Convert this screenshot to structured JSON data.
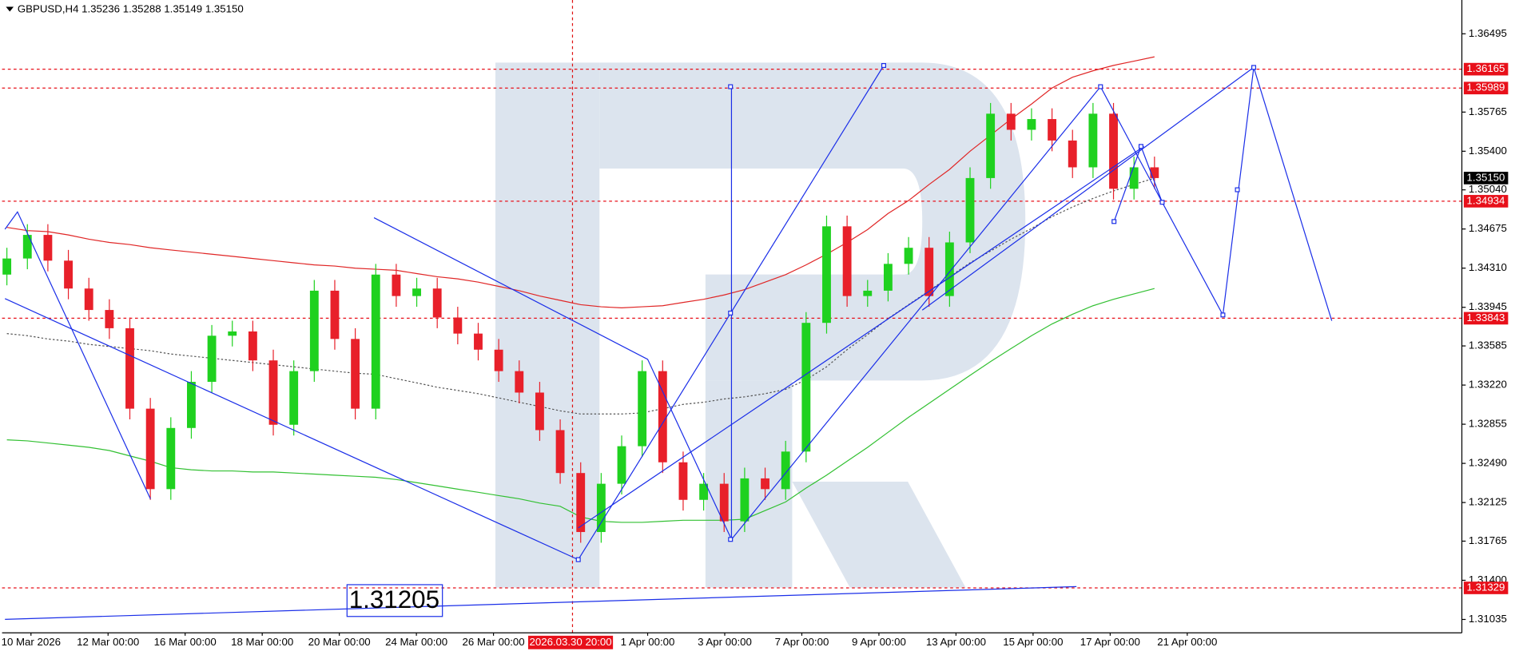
{
  "chart_data": {
    "type": "candlestick",
    "title": "GBPUSD,H4  1.35236 1.35288 1.35149 1.35150",
    "open": [
      1.3425,
      1.344,
      1.3462,
      1.3438,
      1.3412,
      1.3392,
      1.3375,
      1.33,
      1.3225,
      1.3282,
      1.3325,
      1.3368,
      1.3372,
      1.3345,
      1.3285,
      1.3335,
      1.341,
      1.3365,
      1.33,
      1.3425,
      1.3405,
      1.3412,
      1.3385,
      1.337,
      1.3355,
      1.3335,
      1.3315,
      1.328,
      1.324,
      1.3185,
      1.323,
      1.3265,
      1.3335,
      1.325,
      1.3215,
      1.323,
      1.3195,
      1.3235,
      1.3225,
      1.326,
      1.338,
      1.347,
      1.3405,
      1.341,
      1.3435,
      1.345,
      1.3405,
      1.3455,
      1.3515,
      1.3575,
      1.356,
      1.357,
      1.355,
      1.3525,
      1.3575,
      1.3505,
      1.3525
    ],
    "high": [
      1.345,
      1.3472,
      1.3472,
      1.3448,
      1.3422,
      1.3402,
      1.3385,
      1.331,
      1.3292,
      1.3335,
      1.3378,
      1.3382,
      1.3382,
      1.3355,
      1.3345,
      1.342,
      1.342,
      1.3375,
      1.3435,
      1.3435,
      1.3422,
      1.3422,
      1.3395,
      1.338,
      1.3365,
      1.3345,
      1.3325,
      1.329,
      1.325,
      1.324,
      1.3275,
      1.3345,
      1.3345,
      1.326,
      1.324,
      1.324,
      1.3245,
      1.3245,
      1.327,
      1.339,
      1.348,
      1.348,
      1.342,
      1.3445,
      1.346,
      1.346,
      1.3465,
      1.3525,
      1.3585,
      1.3585,
      1.358,
      1.358,
      1.356,
      1.3585,
      1.3585,
      1.3535,
      1.3535
    ],
    "low": [
      1.3415,
      1.343,
      1.3428,
      1.3402,
      1.3382,
      1.3365,
      1.329,
      1.3215,
      1.3215,
      1.3272,
      1.3315,
      1.3358,
      1.3335,
      1.3275,
      1.3275,
      1.3325,
      1.3355,
      1.329,
      1.329,
      1.3395,
      1.3395,
      1.3375,
      1.336,
      1.3345,
      1.3325,
      1.3305,
      1.327,
      1.323,
      1.3175,
      1.3175,
      1.322,
      1.3255,
      1.324,
      1.3205,
      1.3205,
      1.3185,
      1.3185,
      1.3215,
      1.3215,
      1.325,
      1.337,
      1.3395,
      1.3395,
      1.34,
      1.3425,
      1.3395,
      1.3395,
      1.3445,
      1.3505,
      1.355,
      1.355,
      1.354,
      1.3515,
      1.3515,
      1.3495,
      1.3495,
      1.3505
    ],
    "close": [
      1.344,
      1.3462,
      1.3438,
      1.3412,
      1.3392,
      1.3375,
      1.33,
      1.3225,
      1.3282,
      1.3325,
      1.3368,
      1.3372,
      1.3345,
      1.3285,
      1.3335,
      1.341,
      1.3365,
      1.33,
      1.3425,
      1.3405,
      1.3412,
      1.3385,
      1.337,
      1.3355,
      1.3335,
      1.3315,
      1.328,
      1.324,
      1.3185,
      1.323,
      1.3265,
      1.3335,
      1.325,
      1.3215,
      1.323,
      1.3195,
      1.3235,
      1.3225,
      1.326,
      1.338,
      1.347,
      1.3405,
      1.341,
      1.3435,
      1.345,
      1.3405,
      1.3455,
      1.3515,
      1.3575,
      1.356,
      1.357,
      1.355,
      1.3525,
      1.3575,
      1.3505,
      1.3525,
      1.3515
    ],
    "up_color": "#1fd11f",
    "down_color": "#e8202a",
    "lines": [
      {
        "color": "#e02626",
        "values": [
          1.3469,
          1.3466,
          1.3465,
          1.3462,
          1.3458,
          1.3455,
          1.3453,
          1.345,
          1.3448,
          1.3446,
          1.3444,
          1.3442,
          1.344,
          1.3438,
          1.3436,
          1.3434,
          1.3433,
          1.3431,
          1.343,
          1.3429,
          1.3426,
          1.3423,
          1.3421,
          1.3418,
          1.3414,
          1.341,
          1.3405,
          1.3401,
          1.3397,
          1.3395,
          1.3394,
          1.3395,
          1.3396,
          1.3399,
          1.3402,
          1.3406,
          1.3411,
          1.3418,
          1.3425,
          1.3434,
          1.3444,
          1.3455,
          1.3467,
          1.3482,
          1.3494,
          1.3509,
          1.3523,
          1.354,
          1.3555,
          1.357,
          1.3584,
          1.3599,
          1.3609,
          1.3615,
          1.362,
          1.3624,
          1.3628
        ]
      },
      {
        "color": "#32c032",
        "values": [
          1.3271,
          1.327,
          1.3268,
          1.3266,
          1.3264,
          1.3261,
          1.3256,
          1.3251,
          1.3245,
          1.3243,
          1.3242,
          1.3242,
          1.3241,
          1.3241,
          1.324,
          1.3239,
          1.3238,
          1.3237,
          1.3236,
          1.3234,
          1.3231,
          1.3228,
          1.3225,
          1.3222,
          1.3219,
          1.3216,
          1.3212,
          1.3209,
          1.3199,
          1.3195,
          1.3194,
          1.3194,
          1.3195,
          1.3196,
          1.3196,
          1.3196,
          1.3197,
          1.3205,
          1.3213,
          1.3226,
          1.3238,
          1.3251,
          1.3264,
          1.3278,
          1.3292,
          1.3305,
          1.3318,
          1.3331,
          1.3344,
          1.3356,
          1.3368,
          1.3379,
          1.3388,
          1.3396,
          1.3402,
          1.3407,
          1.3412
        ]
      },
      {
        "color": "#555555",
        "dashed": true,
        "values": [
          1.337,
          1.3368,
          1.3365,
          1.3363,
          1.336,
          1.3358,
          1.3356,
          1.3354,
          1.3351,
          1.3349,
          1.3347,
          1.3345,
          1.3343,
          1.3341,
          1.3339,
          1.3337,
          1.3335,
          1.3333,
          1.3332,
          1.3328,
          1.3324,
          1.332,
          1.3317,
          1.3314,
          1.331,
          1.3306,
          1.3302,
          1.3298,
          1.3295,
          1.3295,
          1.3295,
          1.3296,
          1.33,
          1.3304,
          1.3306,
          1.3309,
          1.3311,
          1.3314,
          1.3318,
          1.3327,
          1.3339,
          1.3355,
          1.3369,
          1.3384,
          1.3397,
          1.341,
          1.3423,
          1.3436,
          1.3447,
          1.3458,
          1.3468,
          1.3479,
          1.3488,
          1.3496,
          1.3503,
          1.3509,
          1.3515
        ]
      }
    ],
    "ylim": [
      1.3091,
      1.3681
    ],
    "yticks": [
      1.36495,
      1.35765,
      {
        "value": 1.354,
        "label": "1.35400"
      },
      {
        "value": 1.3504,
        "label": "1.35040"
      },
      1.34675,
      {
        "value": 1.3431,
        "label": "1.34310"
      },
      1.33945,
      1.33585,
      {
        "value": 1.3322,
        "label": "1.33220"
      },
      1.32855,
      {
        "value": 1.3249,
        "label": "1.32490"
      },
      1.32125,
      1.31765,
      {
        "value": 1.314,
        "label": "1.31400"
      },
      1.31035
    ],
    "x_labels": [
      "10 Mar 2026",
      "12 Mar 00:00",
      "16 Mar 00:00",
      "18 Mar 00:00",
      "20 Mar 00:00",
      "24 Mar 00:00",
      "26 Mar 00:00",
      "1 Apr 00:00",
      "3 Apr 00:00",
      "7 Apr 00:00",
      "9 Apr 00:00",
      "13 Apr 00:00",
      "15 Apr 00:00",
      "17 Apr 00:00",
      "21 Apr 00:00"
    ],
    "crosshair_label": "2026.03.30 20:00",
    "levels": [
      {
        "value": 1.36165,
        "color": "#e8101a"
      },
      {
        "value": 1.35989,
        "color": "#e8101a"
      },
      {
        "value": 1.34934,
        "color": "#e8101a"
      },
      {
        "value": 1.33843,
        "color": "#e8101a"
      },
      {
        "value": 1.31329,
        "color": "#e8101a"
      }
    ],
    "current_price": {
      "value": 1.3515,
      "label": "1.35150"
    },
    "annotation": "1.31205"
  }
}
